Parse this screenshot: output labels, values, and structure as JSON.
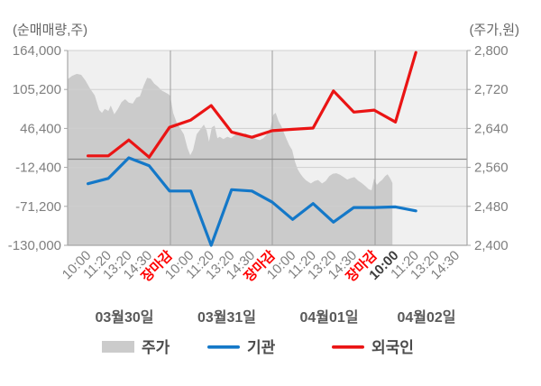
{
  "chart_data": {
    "type": "combo-area-line",
    "title": "",
    "left_axis": {
      "title": "(순매매량,주)",
      "unit": "주",
      "tick_labels": [
        "164,000",
        "105,200",
        "46,400",
        "-12,400",
        "-71,200",
        "-130,000"
      ],
      "tick_values": [
        164000,
        105200,
        46400,
        -12400,
        -71200,
        -130000
      ],
      "ylim": [
        -130000,
        164000
      ]
    },
    "right_axis": {
      "title": "(주가,원)",
      "unit": "원",
      "tick_labels": [
        "2,800",
        "2,720",
        "2,640",
        "2,560",
        "2,480",
        "2,400"
      ],
      "tick_values": [
        2800,
        2720,
        2640,
        2560,
        2480,
        2400
      ],
      "ylim": [
        2400,
        2800
      ]
    },
    "grid": true,
    "legend_position": "bottom",
    "days": [
      {
        "date": "03월30일",
        "times": [
          "10:00",
          "11:20",
          "13:20",
          "14:30",
          "장마감"
        ]
      },
      {
        "date": "03월31일",
        "times": [
          "10:00",
          "11:20",
          "13:20",
          "14:30",
          "장마감"
        ]
      },
      {
        "date": "04월01일",
        "times": [
          "10:00",
          "11:20",
          "13:20",
          "14:30",
          "장마감"
        ]
      },
      {
        "date": "04월02일",
        "times": [
          "10:00",
          "11:20",
          "13:20",
          "14:30"
        ],
        "highlight_time": "10:00"
      }
    ],
    "close_label": "장마감",
    "series": [
      {
        "key": "price",
        "name": "주가",
        "type": "area",
        "axis": "right",
        "color": "#cbcbcb",
        "points_time_fraction_price": [
          [
            0.0,
            2741
          ],
          [
            0.011,
            2748
          ],
          [
            0.023,
            2752
          ],
          [
            0.034,
            2750
          ],
          [
            0.045,
            2738
          ],
          [
            0.056,
            2722
          ],
          [
            0.068,
            2708
          ],
          [
            0.079,
            2678
          ],
          [
            0.086,
            2672
          ],
          [
            0.093,
            2680
          ],
          [
            0.102,
            2676
          ],
          [
            0.108,
            2687
          ],
          [
            0.117,
            2669
          ],
          [
            0.126,
            2680
          ],
          [
            0.135,
            2694
          ],
          [
            0.144,
            2700
          ],
          [
            0.153,
            2693
          ],
          [
            0.163,
            2691
          ],
          [
            0.172,
            2703
          ],
          [
            0.181,
            2706
          ],
          [
            0.19,
            2727
          ],
          [
            0.199,
            2744
          ],
          [
            0.208,
            2742
          ],
          [
            0.217,
            2732
          ],
          [
            0.226,
            2726
          ],
          [
            0.235,
            2718
          ],
          [
            0.244,
            2714
          ],
          [
            0.253,
            2710
          ],
          [
            0.257,
            2706
          ],
          [
            0.264,
            2672
          ],
          [
            0.273,
            2652
          ],
          [
            0.282,
            2640
          ],
          [
            0.291,
            2628
          ],
          [
            0.3,
            2600
          ],
          [
            0.307,
            2585
          ],
          [
            0.314,
            2596
          ],
          [
            0.323,
            2628
          ],
          [
            0.332,
            2638
          ],
          [
            0.341,
            2648
          ],
          [
            0.348,
            2636
          ],
          [
            0.354,
            2613
          ],
          [
            0.361,
            2642
          ],
          [
            0.368,
            2646
          ],
          [
            0.375,
            2620
          ],
          [
            0.381,
            2623
          ],
          [
            0.39,
            2618
          ],
          [
            0.4,
            2623
          ],
          [
            0.409,
            2620
          ],
          [
            0.418,
            2626
          ],
          [
            0.427,
            2631
          ],
          [
            0.436,
            2626
          ],
          [
            0.445,
            2630
          ],
          [
            0.454,
            2626
          ],
          [
            0.463,
            2622
          ],
          [
            0.472,
            2618
          ],
          [
            0.481,
            2616
          ],
          [
            0.49,
            2620
          ],
          [
            0.499,
            2628
          ],
          [
            0.508,
            2641
          ],
          [
            0.515,
            2668
          ],
          [
            0.521,
            2672
          ],
          [
            0.528,
            2655
          ],
          [
            0.535,
            2645
          ],
          [
            0.542,
            2630
          ],
          [
            0.548,
            2618
          ],
          [
            0.555,
            2605
          ],
          [
            0.562,
            2596
          ],
          [
            0.569,
            2572
          ],
          [
            0.576,
            2556
          ],
          [
            0.582,
            2548
          ],
          [
            0.589,
            2540
          ],
          [
            0.596,
            2534
          ],
          [
            0.603,
            2530
          ],
          [
            0.609,
            2527
          ],
          [
            0.618,
            2532
          ],
          [
            0.627,
            2534
          ],
          [
            0.637,
            2527
          ],
          [
            0.646,
            2532
          ],
          [
            0.655,
            2542
          ],
          [
            0.664,
            2547
          ],
          [
            0.673,
            2548
          ],
          [
            0.682,
            2545
          ],
          [
            0.691,
            2540
          ],
          [
            0.7,
            2535
          ],
          [
            0.709,
            2538
          ],
          [
            0.718,
            2540
          ],
          [
            0.727,
            2533
          ],
          [
            0.736,
            2528
          ],
          [
            0.745,
            2522
          ],
          [
            0.754,
            2515
          ],
          [
            0.761,
            2513
          ],
          [
            0.767,
            2537
          ],
          [
            0.774,
            2524
          ],
          [
            0.781,
            2530
          ],
          [
            0.788,
            2535
          ],
          [
            0.795,
            2542
          ],
          [
            0.801,
            2546
          ],
          [
            0.808,
            2537
          ],
          [
            0.813,
            2528
          ]
        ]
      },
      {
        "key": "institution",
        "name": "기관",
        "type": "line",
        "axis": "left",
        "color": "#1478c8",
        "values": [
          -37000,
          -29000,
          2000,
          -10000,
          -48000,
          -48000,
          -130000,
          -46000,
          -48000,
          -65000,
          -91000,
          -67000,
          -95000,
          -73000,
          -73000,
          -72000,
          -78000
        ]
      },
      {
        "key": "foreigner",
        "name": "외국인",
        "type": "line",
        "axis": "left",
        "color": "#ea1414",
        "values": [
          5000,
          5000,
          29000,
          3000,
          48000,
          59000,
          81000,
          41000,
          33000,
          43000,
          45000,
          47000,
          103000,
          71000,
          74000,
          56000,
          161000
        ]
      }
    ]
  },
  "legend": {
    "items": [
      {
        "key": "price",
        "label": "주가",
        "swatch": "area",
        "color": "#cbcbcb"
      },
      {
        "key": "institution",
        "label": "기관",
        "swatch": "line",
        "color": "#1478c8"
      },
      {
        "key": "foreigner",
        "label": "외국인",
        "swatch": "line",
        "color": "#ea1414"
      }
    ]
  },
  "colors": {
    "plot_background": "#f0f0f0",
    "gridline": "#cfcfcf",
    "day_separator": "#9c9c9c",
    "zero_line": "#8a8a8a",
    "axis_line": "#a6a6a6",
    "tick_text": "#7f7f7f",
    "close_label_text": "#ff0000",
    "highlight_tick_text": "#3d3d3d",
    "date_text": "#595959",
    "legend_text": "#4a4a4a",
    "title_text": "#666666"
  }
}
